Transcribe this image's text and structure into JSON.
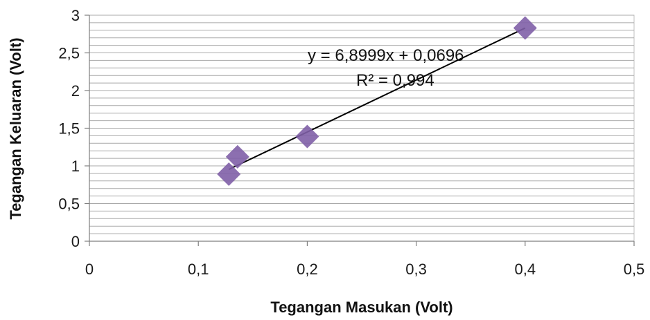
{
  "chart_data": {
    "type": "scatter",
    "xlabel": "Tegangan Masukan (Volt)",
    "ylabel": "Tegangan Keluaran (Volt)",
    "xlim": [
      0,
      0.5
    ],
    "ylim": [
      0,
      3
    ],
    "x_ticks": [
      "0",
      "0,1",
      "0,2",
      "0,3",
      "0,4",
      "0,5"
    ],
    "y_ticks": [
      "0",
      "0,5",
      "1",
      "1,5",
      "2",
      "2,5",
      "3"
    ],
    "grid": "horizontal",
    "legend": "none",
    "series": [
      {
        "color": "#7f5fa7",
        "marker": "diamond",
        "points": [
          {
            "x": 0.128,
            "y": 0.89
          },
          {
            "x": 0.136,
            "y": 1.12
          },
          {
            "x": 0.2,
            "y": 1.39
          },
          {
            "x": 0.4,
            "y": 2.83
          }
        ]
      }
    ],
    "trendline": {
      "type": "linear",
      "color": "#000000",
      "slope": 6.8999,
      "intercept": 0.0696,
      "x_range": [
        0.128,
        0.4
      ],
      "equation": "y = 6,8999x + 0,0696",
      "r_squared": "R² = 0,994"
    }
  }
}
